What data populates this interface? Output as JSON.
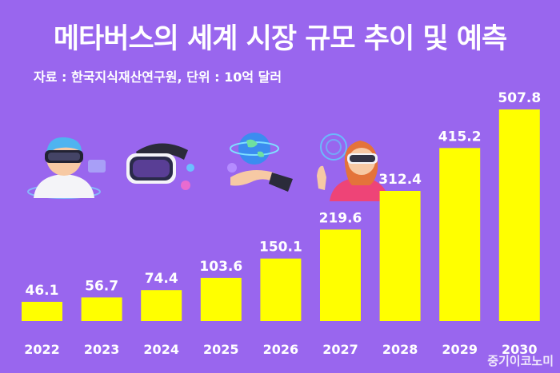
{
  "title": "메타버스의 세계 시장 규모 추이 및 예측",
  "subtitle": "자료 : 한국지식재산연구원, 단위 : 10억 달러",
  "watermark": "중기이코노미",
  "colors": {
    "background": "#9966ee",
    "bar": "#ffff00",
    "text": "#ffffff"
  },
  "icons": [
    "vr-headset-avatar-icon",
    "vr-headset-icon",
    "globe-hand-icon",
    "vr-woman-avatar-icon"
  ],
  "chart_data": {
    "type": "bar",
    "title": "메타버스의 세계 시장 규모 추이 및 예측",
    "subtitle": "자료 : 한국지식재산연구원, 단위 : 10억 달러",
    "categories": [
      "2022",
      "2023",
      "2024",
      "2025",
      "2026",
      "2027",
      "2028",
      "2029",
      "2030"
    ],
    "values": [
      46.1,
      56.7,
      74.4,
      103.6,
      150.1,
      219.6,
      312.4,
      415.2,
      507.8
    ],
    "value_labels": [
      "46.1",
      "56.7",
      "74.4",
      "103.6",
      "150.1",
      "219.6",
      "312.4",
      "415.2",
      "507.8"
    ],
    "ylim": [
      0,
      507.8
    ],
    "grid": false,
    "legend": "none"
  }
}
